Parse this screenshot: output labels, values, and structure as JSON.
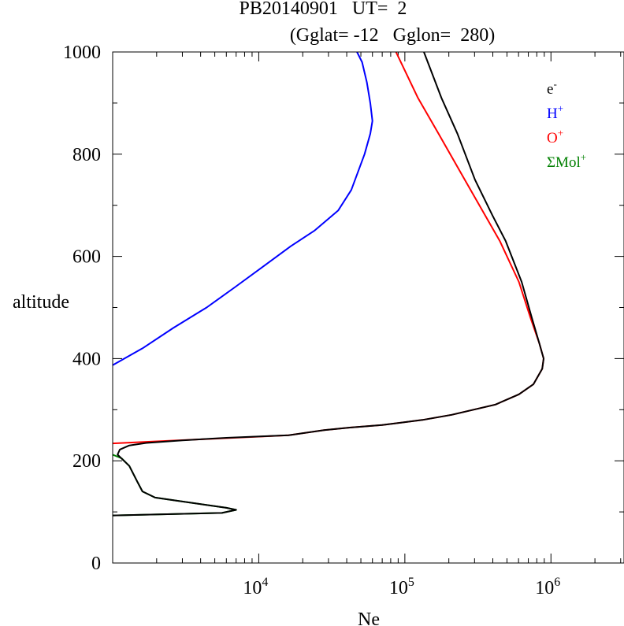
{
  "title_line1": "PB20140901   UT=  2",
  "title_line2": "(Gglat= -12   Gglon=  280)",
  "chart_data": {
    "type": "line",
    "xlabel": "Ne",
    "ylabel": "altitude",
    "x_scale": "log",
    "xlim": [
      1000,
      3162278
    ],
    "ylim": [
      0,
      1000
    ],
    "x_tick_labels": [
      {
        "exp": 4,
        "base": "10",
        "sup": "4"
      },
      {
        "exp": 5,
        "base": "10",
        "sup": "5"
      },
      {
        "exp": 6,
        "base": "10",
        "sup": "6"
      }
    ],
    "y_ticks": [
      0,
      200,
      400,
      600,
      800,
      1000
    ],
    "legend_position": "top-right",
    "legend": [
      {
        "base": "e",
        "sup": "-",
        "color": "#000000"
      },
      {
        "base": "H",
        "sup": "+",
        "color": "#0000ff"
      },
      {
        "base": "O",
        "sup": "+",
        "color": "#ff0000"
      },
      {
        "base": "ΣMol",
        "sup": "+",
        "color": "#008000"
      }
    ],
    "series": [
      {
        "name": "H+",
        "color": "#0000ff",
        "points": [
          [
            1000,
            387
          ],
          [
            1600,
            420
          ],
          [
            2600,
            460
          ],
          [
            4400,
            500
          ],
          [
            6900,
            540
          ],
          [
            10700,
            580
          ],
          [
            16600,
            620
          ],
          [
            24000,
            650
          ],
          [
            35000,
            690
          ],
          [
            43000,
            730
          ],
          [
            53000,
            800
          ],
          [
            58000,
            840
          ],
          [
            60000,
            865
          ],
          [
            58000,
            900
          ],
          [
            55000,
            940
          ],
          [
            51000,
            980
          ],
          [
            47000,
            1000
          ]
        ]
      },
      {
        "name": "O+",
        "color": "#ff0000",
        "points": [
          [
            1000,
            234
          ],
          [
            16000,
            250
          ],
          [
            28000,
            260
          ],
          [
            42000,
            265
          ],
          [
            70000,
            270
          ],
          [
            132000,
            280
          ],
          [
            209000,
            290
          ],
          [
            417000,
            310
          ],
          [
            603000,
            330
          ],
          [
            759000,
            350
          ],
          [
            871000,
            380
          ],
          [
            891000,
            400
          ],
          [
            832000,
            430
          ],
          [
            724000,
            480
          ],
          [
            603000,
            550
          ],
          [
            447000,
            630
          ],
          [
            355000,
            680
          ],
          [
            257000,
            750
          ],
          [
            170000,
            840
          ],
          [
            123000,
            910
          ],
          [
            87000,
            1000
          ]
        ]
      },
      {
        "name": "ΣMol+",
        "color": "#008000",
        "points": [
          [
            1000,
            212
          ],
          [
            1150,
            205
          ],
          [
            1300,
            190
          ],
          [
            1470,
            160
          ],
          [
            1600,
            140
          ],
          [
            1950,
            128
          ],
          [
            6000,
            108
          ],
          [
            7000,
            104
          ],
          [
            5600,
            98
          ],
          [
            1000,
            93
          ]
        ]
      },
      {
        "name": "e-",
        "color": "#000000",
        "points": [
          [
            1000,
            93
          ],
          [
            5600,
            98
          ],
          [
            7000,
            104
          ],
          [
            6000,
            108
          ],
          [
            1950,
            128
          ],
          [
            1600,
            140
          ],
          [
            1470,
            160
          ],
          [
            1300,
            190
          ],
          [
            1080,
            212
          ],
          [
            1120,
            222
          ],
          [
            1300,
            230
          ],
          [
            1700,
            235
          ],
          [
            3000,
            240
          ],
          [
            6000,
            245
          ],
          [
            16000,
            250
          ],
          [
            28000,
            260
          ],
          [
            42000,
            265
          ],
          [
            70000,
            270
          ],
          [
            132000,
            280
          ],
          [
            209000,
            290
          ],
          [
            417000,
            310
          ],
          [
            603000,
            330
          ],
          [
            759000,
            350
          ],
          [
            871000,
            380
          ],
          [
            891000,
            400
          ],
          [
            832000,
            430
          ],
          [
            740000,
            480
          ],
          [
            630000,
            550
          ],
          [
            490000,
            630
          ],
          [
            398000,
            680
          ],
          [
            302000,
            750
          ],
          [
            229000,
            840
          ],
          [
            178000,
            910
          ],
          [
            135000,
            1000
          ]
        ]
      }
    ]
  }
}
